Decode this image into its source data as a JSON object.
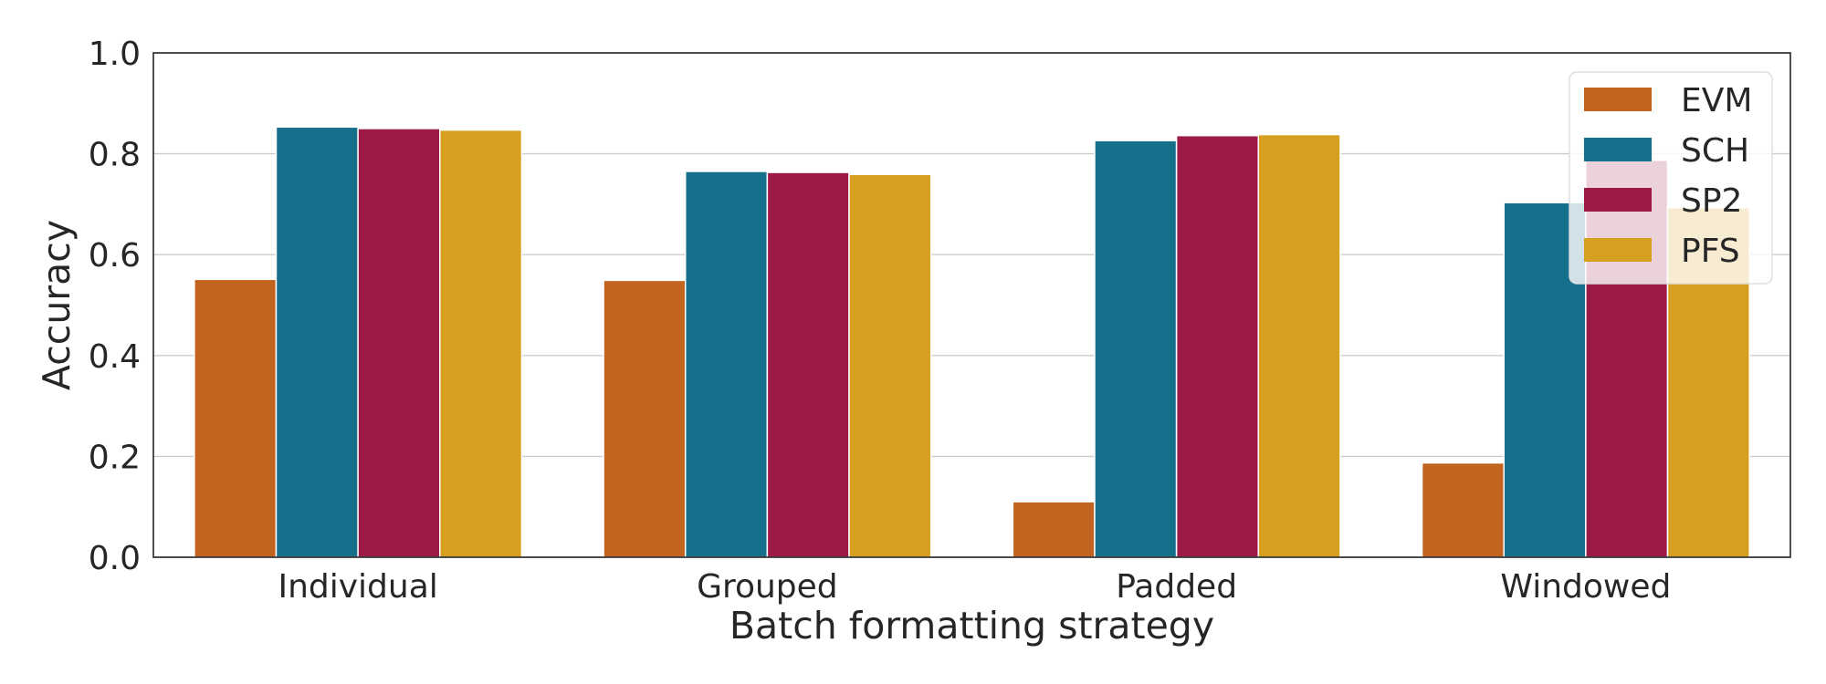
{
  "chart_data": {
    "type": "bar",
    "xlabel": "Batch formatting strategy",
    "ylabel": "Accuracy",
    "ylim": [
      0,
      1.0
    ],
    "yticks": [
      0.0,
      0.2,
      0.4,
      0.6,
      0.8,
      1.0
    ],
    "ytick_labels": [
      "0.0",
      "0.2",
      "0.4",
      "0.6",
      "0.8",
      "1.0"
    ],
    "grid": "horizontal",
    "legend_position": "top-right",
    "categories": [
      "Individual",
      "Grouped",
      "Padded",
      "Windowed"
    ],
    "series": [
      {
        "name": "EVM",
        "color": "#c26420",
        "values": [
          0.551,
          0.549,
          0.11,
          0.187
        ]
      },
      {
        "name": "SCH",
        "color": "#16708c",
        "values": [
          0.853,
          0.765,
          0.826,
          0.703
        ]
      },
      {
        "name": "SP2",
        "color": "#9c1a44",
        "values": [
          0.85,
          0.763,
          0.836,
          0.787
        ]
      },
      {
        "name": "PFS",
        "color": "#d69f20",
        "values": [
          0.847,
          0.759,
          0.838,
          0.693
        ]
      }
    ]
  }
}
